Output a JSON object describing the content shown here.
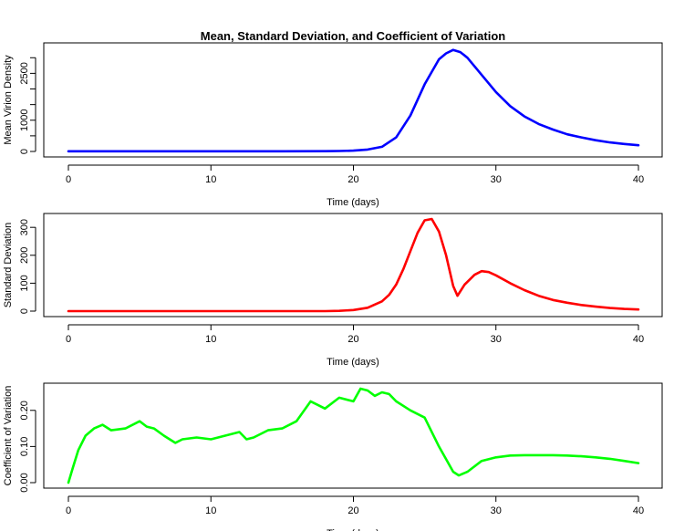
{
  "chart_data": [
    {
      "type": "line",
      "title": "Mean, Standard Deviation, and Coefficient of Variation",
      "xlabel": "Time (days)",
      "ylabel": "Mean Virion Density",
      "xlim": [
        0,
        40
      ],
      "ylim": [
        0,
        3300
      ],
      "x_ticks": [
        0,
        10,
        20,
        30,
        40
      ],
      "y_ticks": [
        0,
        1000,
        2500
      ],
      "y_minor_ticks": [
        500,
        1500,
        2000,
        3000
      ],
      "grid": false,
      "color": "#0000ff",
      "series": [
        {
          "x": [
            0,
            5,
            10,
            15,
            18,
            19,
            20,
            21,
            22,
            23,
            24,
            25,
            26,
            26.5,
            27,
            27.5,
            28,
            29,
            30,
            31,
            32,
            33,
            34,
            35,
            36,
            37,
            38,
            39,
            40
          ],
          "values": [
            5,
            5,
            5,
            5,
            8,
            15,
            25,
            60,
            150,
            450,
            1150,
            2150,
            2950,
            3140,
            3250,
            3180,
            3000,
            2450,
            1900,
            1450,
            1120,
            880,
            700,
            550,
            450,
            360,
            290,
            240,
            200
          ]
        }
      ]
    },
    {
      "type": "line",
      "title": "",
      "xlabel": "Time (days)",
      "ylabel": "Standard Deviation",
      "xlim": [
        0,
        40
      ],
      "ylim": [
        0,
        330
      ],
      "x_ticks": [
        0,
        10,
        20,
        30,
        40
      ],
      "y_ticks": [
        0,
        100,
        200,
        300
      ],
      "grid": false,
      "color": "#ff0000",
      "series": [
        {
          "x": [
            0,
            5,
            10,
            15,
            18,
            19,
            20,
            21,
            22,
            22.5,
            23,
            23.5,
            24,
            24.5,
            25,
            25.5,
            26,
            26.5,
            27,
            27.3,
            27.8,
            28.5,
            29,
            29.5,
            30,
            31,
            32,
            33,
            34,
            35,
            36,
            37,
            38,
            39,
            40
          ],
          "values": [
            0,
            0,
            0,
            0,
            0,
            1,
            4,
            12,
            35,
            58,
            95,
            150,
            215,
            280,
            325,
            330,
            285,
            200,
            90,
            55,
            95,
            130,
            143,
            140,
            128,
            100,
            75,
            55,
            40,
            30,
            22,
            16,
            11,
            8,
            6
          ]
        }
      ]
    },
    {
      "type": "line",
      "title": "",
      "xlabel": "Time (days)",
      "ylabel": "Coefficient of Variation",
      "xlim": [
        0,
        40
      ],
      "ylim": [
        0,
        0.26
      ],
      "x_ticks": [
        0,
        10,
        20,
        30,
        40
      ],
      "y_ticks": [
        0.0,
        0.1,
        0.2
      ],
      "y_tick_labels": [
        "0.00",
        "0.10",
        "0.20"
      ],
      "grid": false,
      "color": "#00ff00",
      "series": [
        {
          "x": [
            0,
            0.3,
            0.7,
            1.2,
            1.8,
            2.4,
            3,
            4,
            5,
            5.5,
            6,
            6.7,
            7.5,
            8,
            9,
            10,
            11,
            12,
            12.5,
            13,
            14,
            15,
            16,
            17,
            17.5,
            18,
            19,
            20,
            20.5,
            21,
            21.5,
            22,
            22.5,
            23,
            24,
            25,
            26,
            27,
            27.4,
            28,
            29,
            30,
            31,
            32,
            33,
            34,
            35,
            36,
            37,
            38,
            39,
            40
          ],
          "values": [
            0.0,
            0.04,
            0.09,
            0.13,
            0.15,
            0.16,
            0.145,
            0.15,
            0.17,
            0.155,
            0.15,
            0.13,
            0.11,
            0.12,
            0.125,
            0.12,
            0.13,
            0.14,
            0.12,
            0.125,
            0.145,
            0.15,
            0.17,
            0.225,
            0.215,
            0.205,
            0.235,
            0.225,
            0.26,
            0.255,
            0.24,
            0.25,
            0.245,
            0.225,
            0.2,
            0.18,
            0.1,
            0.03,
            0.02,
            0.03,
            0.06,
            0.07,
            0.075,
            0.076,
            0.076,
            0.076,
            0.075,
            0.073,
            0.07,
            0.066,
            0.06,
            0.054
          ]
        }
      ]
    }
  ]
}
